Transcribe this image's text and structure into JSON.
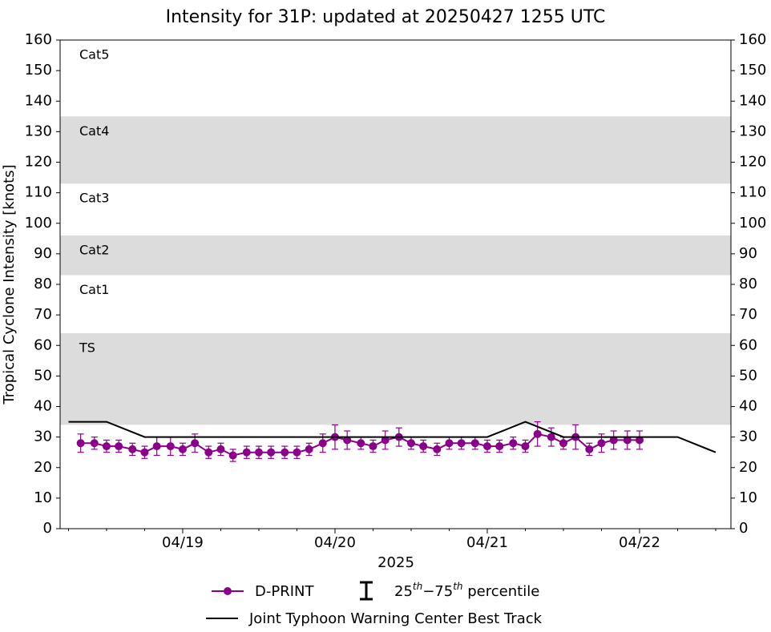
{
  "chart_data": {
    "type": "intensity",
    "title": "Intensity for 31P: updated at 20250427 1255 UTC",
    "ylabel": "Tropical Cyclone Intensity [knots]",
    "xlabel": "2025",
    "ylim": [
      0,
      160
    ],
    "yticks": [
      0,
      10,
      20,
      30,
      40,
      50,
      60,
      70,
      80,
      90,
      100,
      110,
      120,
      130,
      140,
      150,
      160
    ],
    "y2lim": [
      0,
      160
    ],
    "y2ticks": [
      0,
      10,
      20,
      30,
      40,
      50,
      60,
      70,
      80,
      90,
      100,
      110,
      120,
      130,
      140,
      150,
      160
    ],
    "xlim": [
      18.195,
      22.6
    ],
    "xticks": [
      {
        "value": 19,
        "label": "04/19"
      },
      {
        "value": 20,
        "label": "04/20"
      },
      {
        "value": 21,
        "label": "04/21"
      },
      {
        "value": 22,
        "label": "04/22"
      }
    ],
    "xminorticks": [
      18.25,
      18.5,
      18.75,
      19.25,
      19.5,
      19.75,
      20.25,
      20.5,
      20.75,
      21.25,
      21.5,
      21.75,
      22.25,
      22.5
    ],
    "bands": [
      {
        "name": "TS",
        "ylim": [
          34,
          64
        ],
        "shaded": true
      },
      {
        "name": "Cat1",
        "ylim": [
          64,
          83
        ],
        "shaded": false
      },
      {
        "name": "Cat2",
        "ylim": [
          83,
          96
        ],
        "shaded": true
      },
      {
        "name": "Cat3",
        "ylim": [
          96,
          113
        ],
        "shaded": false
      },
      {
        "name": "Cat4",
        "ylim": [
          113,
          135
        ],
        "shaded": true
      },
      {
        "name": "Cat5",
        "ylim": [
          135,
          160
        ],
        "shaded": false
      }
    ],
    "band_color": "#dcdcdc",
    "series": [
      {
        "name": "D-PRINT",
        "color": "#8b008b",
        "marker": true,
        "x": [
          18.33,
          18.42,
          18.5,
          18.58,
          18.67,
          18.75,
          18.83,
          18.92,
          19.0,
          19.08,
          19.17,
          19.25,
          19.33,
          19.42,
          19.5,
          19.58,
          19.67,
          19.75,
          19.83,
          19.92,
          20.0,
          20.08,
          20.17,
          20.25,
          20.33,
          20.42,
          20.5,
          20.58,
          20.67,
          20.75,
          20.83,
          20.92,
          21.0,
          21.08,
          21.17,
          21.25,
          21.33,
          21.42,
          21.5,
          21.58,
          21.67,
          21.75,
          21.83,
          21.92,
          22.0
        ],
        "values": [
          28,
          28,
          27,
          27,
          26,
          25,
          27,
          27,
          26,
          28,
          25,
          26,
          24,
          25,
          25,
          25,
          25,
          25,
          26,
          28,
          30,
          29,
          28,
          27,
          29,
          30,
          28,
          27,
          26,
          28,
          28,
          28,
          27,
          27,
          28,
          27,
          31,
          30,
          28,
          30,
          26,
          28,
          29,
          29,
          29
        ],
        "errors": [
          3,
          2,
          2,
          2,
          2,
          2,
          3,
          3,
          2,
          3,
          2,
          2,
          2,
          2,
          2,
          2,
          2,
          2,
          2,
          3,
          4,
          3,
          2,
          2,
          3,
          3,
          2,
          2,
          2,
          2,
          2,
          2,
          2,
          2,
          2,
          2,
          4,
          3,
          2,
          4,
          2,
          3,
          3,
          3,
          3
        ]
      },
      {
        "name": "Joint Typhoon Warning Center Best Track",
        "color": "#000000",
        "marker": false,
        "x": [
          18.25,
          18.5,
          18.75,
          19.0,
          19.25,
          19.5,
          19.75,
          20.0,
          20.25,
          20.5,
          20.75,
          21.0,
          21.25,
          21.5,
          21.75,
          22.0,
          22.25,
          22.5
        ],
        "values": [
          35,
          35,
          30,
          30,
          30,
          30,
          30,
          30,
          30,
          30,
          30,
          30,
          35,
          30,
          30,
          30,
          30,
          25
        ]
      }
    ],
    "error_legend": [
      "25",
      "th",
      "−75",
      "th",
      " percentile"
    ]
  }
}
